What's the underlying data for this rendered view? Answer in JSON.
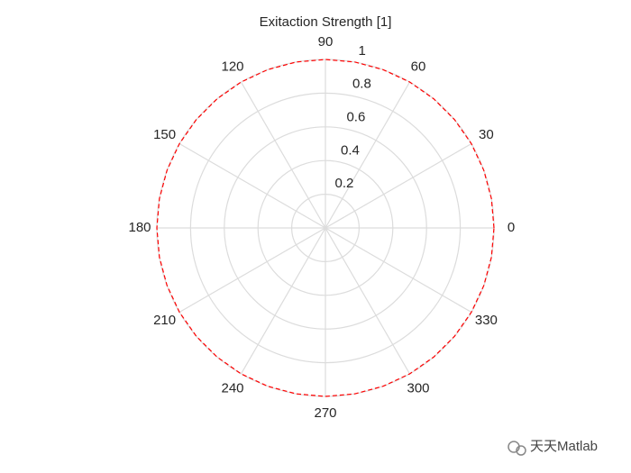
{
  "chart_data": {
    "type": "polar",
    "title": "Exitaction Strength [1]",
    "series": [
      {
        "color": "#ff0000",
        "theta": [
          0,
          10,
          20,
          30,
          40,
          50,
          60,
          70,
          80,
          90,
          100,
          110,
          120,
          130,
          140,
          150,
          160,
          170,
          180,
          190,
          200,
          210,
          220,
          230,
          240,
          250,
          260,
          270,
          280,
          290,
          300,
          310,
          320,
          330,
          340,
          350,
          360
        ],
        "values": [
          1,
          1,
          1,
          1,
          1,
          1,
          1,
          1,
          1,
          1,
          1,
          1,
          1,
          1,
          1,
          1,
          1,
          1,
          1,
          1,
          1,
          1,
          1,
          1,
          1,
          1,
          1,
          1,
          1,
          1,
          1,
          1,
          1,
          1,
          1,
          1,
          1
        ]
      }
    ],
    "rlim": [
      0,
      1
    ],
    "rticks": [
      0.2,
      0.4,
      0.6,
      0.8,
      1
    ],
    "thetaticks": [
      0,
      30,
      60,
      90,
      120,
      150,
      180,
      210,
      240,
      270,
      300,
      330
    ],
    "grid": true
  },
  "watermark": "天天Matlab"
}
